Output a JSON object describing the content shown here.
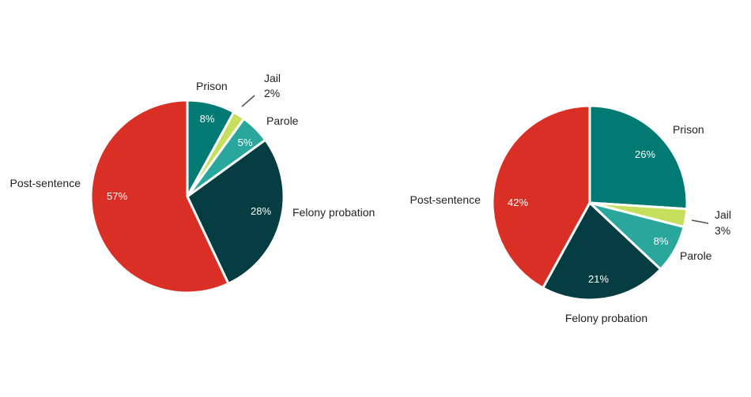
{
  "chart_data": [
    {
      "type": "pie",
      "categories": [
        "Prison",
        "Jail",
        "Parole",
        "Felony probation",
        "Post-sentence"
      ],
      "values": [
        8,
        2,
        5,
        28,
        57
      ],
      "value_labels": [
        "8%",
        "2%",
        "5%",
        "28%",
        "57%"
      ],
      "colors": [
        "#007a73",
        "#c6df5c",
        "#2aa79d",
        "#053d42",
        "#d92f24"
      ],
      "start": "12 o'clock",
      "direction": "clockwise"
    },
    {
      "type": "pie",
      "categories": [
        "Prison",
        "Jail",
        "Parole",
        "Felony probation",
        "Post-sentence"
      ],
      "values": [
        26,
        3,
        8,
        21,
        42
      ],
      "value_labels": [
        "26%",
        "3%",
        "8%",
        "21%",
        "42%"
      ],
      "colors": [
        "#007a73",
        "#c6df5c",
        "#2aa79d",
        "#053d42",
        "#d92f24"
      ],
      "start": "12 o'clock",
      "direction": "clockwise"
    }
  ]
}
